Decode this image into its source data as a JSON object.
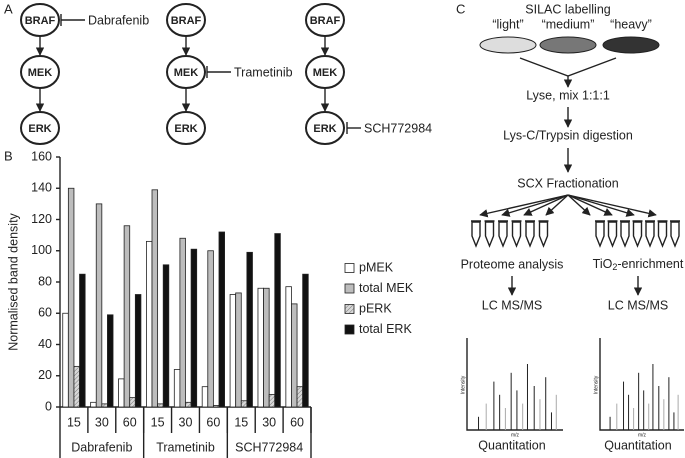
{
  "panel_labels": {
    "a": "A",
    "b": "B",
    "c": "C"
  },
  "panel_a": {
    "pathways": [
      {
        "nodes": [
          "BRAF",
          "MEK",
          "ERK"
        ],
        "inhibitor": "Dabrafenib"
      },
      {
        "nodes": [
          "BRAF",
          "MEK",
          "ERK"
        ],
        "inhibitor": "Trametinib"
      },
      {
        "nodes": [
          "BRAF",
          "MEK",
          "ERK"
        ],
        "inhibitor": "SCH772984"
      }
    ]
  },
  "chart_data": {
    "type": "bar",
    "y_label": "Normalised band density",
    "categories": [
      "15",
      "30",
      "60",
      "15",
      "30",
      "60",
      "15",
      "30",
      "60"
    ],
    "groups": [
      "Dabrafenib",
      "Trametinib",
      "SCH772984"
    ],
    "ylim": [
      0,
      160
    ],
    "yticks": [
      0,
      20,
      40,
      60,
      80,
      100,
      120,
      140,
      160
    ],
    "legend": "right",
    "series": [
      {
        "name": "pMEK",
        "color": "#ffffff",
        "values": [
          60,
          3,
          18,
          106,
          24,
          13,
          72,
          76,
          77
        ]
      },
      {
        "name": "total MEK",
        "color": "#bdbdbd",
        "values": [
          140,
          130,
          116,
          139,
          108,
          100,
          73,
          76,
          66
        ]
      },
      {
        "name": "pERK",
        "color": "#bdbdbd",
        "hatch": true,
        "values": [
          26,
          2,
          6,
          2,
          3,
          1,
          4,
          8,
          13
        ]
      },
      {
        "name": "total ERK",
        "color": "#111111",
        "values": [
          85,
          59,
          72,
          91,
          101,
          112,
          99,
          111,
          85
        ]
      }
    ]
  },
  "panel_c": {
    "title": "SILAC labelling",
    "labels": [
      "“light”",
      "“medium”",
      "“heavy”"
    ],
    "steps": [
      "Lyse, mix 1:1:1",
      "Lys-C/Trypsin digestion",
      "SCX Fractionation"
    ],
    "left": {
      "branch": "Proteome analysis",
      "ms": "LC MS/MS",
      "y_axis": "Intensity",
      "x_axis": "m/z",
      "result": "Quantitation"
    },
    "right": {
      "branch": {
        "prefix": "TiO",
        "sub": "2",
        "suffix": "-enrichment"
      },
      "ms": "LC MS/MS",
      "y_axis": "Intensity",
      "x_axis": "m/z",
      "result": "Quantitation"
    }
  }
}
